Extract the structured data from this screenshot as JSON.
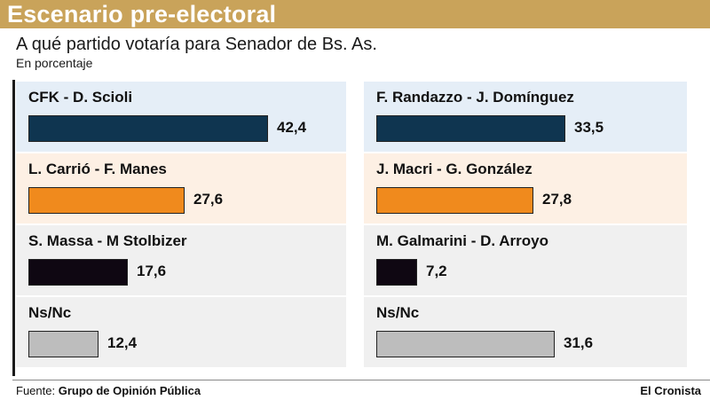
{
  "header": {
    "title": "Escenario pre-electoral",
    "question": "A qué partido votaría para Senador de Bs. As.",
    "unit": "En porcentaje"
  },
  "colors": {
    "header_band": "#c9a35a",
    "row1_bg": "#e5eef7",
    "row2_bg": "#fdf0e4",
    "row3_bg": "#f0f0f0",
    "row4_bg": "#f0f0f0",
    "navy": "#0f3550",
    "orange": "#f08a1d",
    "black": "#0f0712",
    "gray": "#bdbdbd"
  },
  "chart_data": {
    "type": "bar",
    "title": "A qué partido votaría para Senador de Bs. As.",
    "subtitle": "En porcentaje",
    "xlim": [
      0,
      50
    ],
    "categories": [
      "CFK - D. Scioli",
      "F. Randazzo - J. Domínguez",
      "L. Carrió - F. Manes",
      "J. Macri - G. González",
      "S. Massa - M Stolbizer",
      "M. Galmarini - D. Arroyo",
      "Ns/Nc",
      "Ns/Nc"
    ],
    "values": [
      42.4,
      33.5,
      27.6,
      27.8,
      17.6,
      7.2,
      12.4,
      31.6
    ],
    "value_labels": [
      "42,4",
      "33,5",
      "27,6",
      "27,8",
      "17,6",
      "7,2",
      "12,4",
      "31,6"
    ],
    "bar_colors": [
      "#0f3550",
      "#0f3550",
      "#f08a1d",
      "#f08a1d",
      "#0f0712",
      "#0f0712",
      "#bdbdbd",
      "#bdbdbd"
    ]
  },
  "footer": {
    "source_prefix": "Fuente:",
    "source_name": "Grupo de Opinión Pública",
    "brand": "El Cronista"
  }
}
